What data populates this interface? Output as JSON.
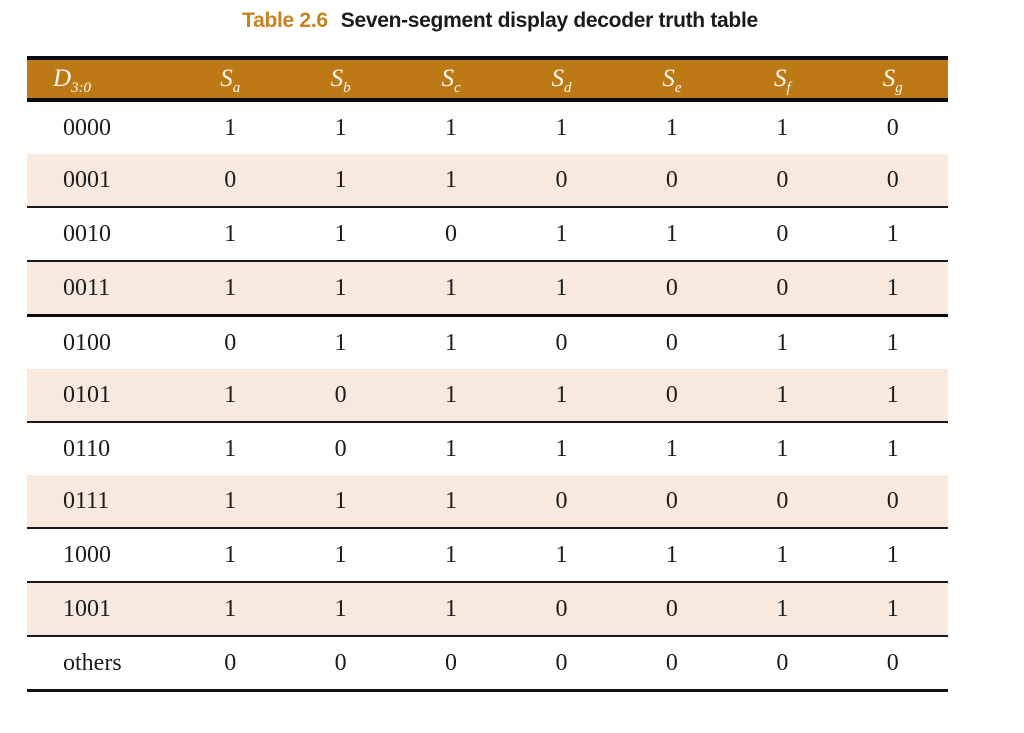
{
  "title": {
    "label": "Table 2.6",
    "text": "Seven-segment display decoder truth table"
  },
  "colors": {
    "header_bg": "#bc7915",
    "shaded_row_bg": "#f7e9de",
    "title_accent": "#c8831e",
    "rule": "#1a1a1a"
  },
  "table": {
    "columns": [
      {
        "base": "D",
        "sub": "3:0"
      },
      {
        "base": "S",
        "sub": "a"
      },
      {
        "base": "S",
        "sub": "b"
      },
      {
        "base": "S",
        "sub": "c"
      },
      {
        "base": "S",
        "sub": "d"
      },
      {
        "base": "S",
        "sub": "e"
      },
      {
        "base": "S",
        "sub": "f"
      },
      {
        "base": "S",
        "sub": "g"
      }
    ],
    "rows": [
      {
        "input": "0000",
        "values": [
          "1",
          "1",
          "1",
          "1",
          "1",
          "1",
          "0"
        ]
      },
      {
        "input": "0001",
        "values": [
          "0",
          "1",
          "1",
          "0",
          "0",
          "0",
          "0"
        ]
      },
      {
        "input": "0010",
        "values": [
          "1",
          "1",
          "0",
          "1",
          "1",
          "0",
          "1"
        ]
      },
      {
        "input": "0011",
        "values": [
          "1",
          "1",
          "1",
          "1",
          "0",
          "0",
          "1"
        ]
      },
      {
        "input": "0100",
        "values": [
          "0",
          "1",
          "1",
          "0",
          "0",
          "1",
          "1"
        ]
      },
      {
        "input": "0101",
        "values": [
          "1",
          "0",
          "1",
          "1",
          "0",
          "1",
          "1"
        ]
      },
      {
        "input": "0110",
        "values": [
          "1",
          "0",
          "1",
          "1",
          "1",
          "1",
          "1"
        ]
      },
      {
        "input": "0111",
        "values": [
          "1",
          "1",
          "1",
          "0",
          "0",
          "0",
          "0"
        ]
      },
      {
        "input": "1000",
        "values": [
          "1",
          "1",
          "1",
          "1",
          "1",
          "1",
          "1"
        ]
      },
      {
        "input": "1001",
        "values": [
          "1",
          "1",
          "1",
          "0",
          "0",
          "1",
          "1"
        ]
      },
      {
        "input": "others",
        "values": [
          "0",
          "0",
          "0",
          "0",
          "0",
          "0",
          "0"
        ]
      }
    ]
  }
}
